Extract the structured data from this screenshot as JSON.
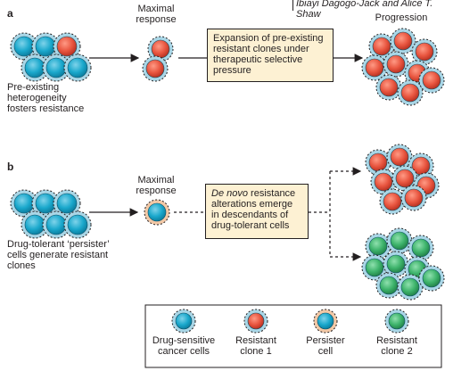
{
  "author": "Ibiayi Dagogo-Jack and Alice T. Shaw",
  "panels": {
    "a": {
      "label": "a",
      "left_caption": [
        "Pre-existing",
        "heterogeneity",
        "fosters resistance"
      ],
      "maximal_response": [
        "Maximal",
        "response"
      ],
      "box_text": [
        "Expansion of pre-existing",
        "resistant clones under",
        "therapeutic selective",
        "pressure"
      ],
      "progression": "Progression"
    },
    "b": {
      "label": "b",
      "left_caption": [
        "Drug-tolerant ‘persister’",
        "cells generate resistant",
        "clones"
      ],
      "maximal_response": [
        "Maximal",
        "response"
      ],
      "box_text_em": "De novo",
      "box_text_rest": " resistance",
      "box_text": [
        "alterations emerge",
        "in descendants of",
        "drug-tolerant cells"
      ]
    }
  },
  "legend": {
    "items": [
      {
        "type": "sensitive",
        "label": [
          "Drug-sensitive",
          "cancer cells"
        ]
      },
      {
        "type": "resistant1",
        "label": [
          "Resistant",
          "clone 1"
        ]
      },
      {
        "type": "persister",
        "label": [
          "Persister",
          "cell"
        ]
      },
      {
        "type": "resistant2",
        "label": [
          "Resistant",
          "clone 2"
        ]
      }
    ]
  },
  "colors": {
    "sensitive": "#1aa8cc",
    "resistant1": "#e8553f",
    "resistant2": "#3db36b",
    "halo": "#a9d6e6",
    "persister_halo": "#f2c8a6",
    "box_fill": "#fdf1d3",
    "stroke": "#231f20"
  }
}
